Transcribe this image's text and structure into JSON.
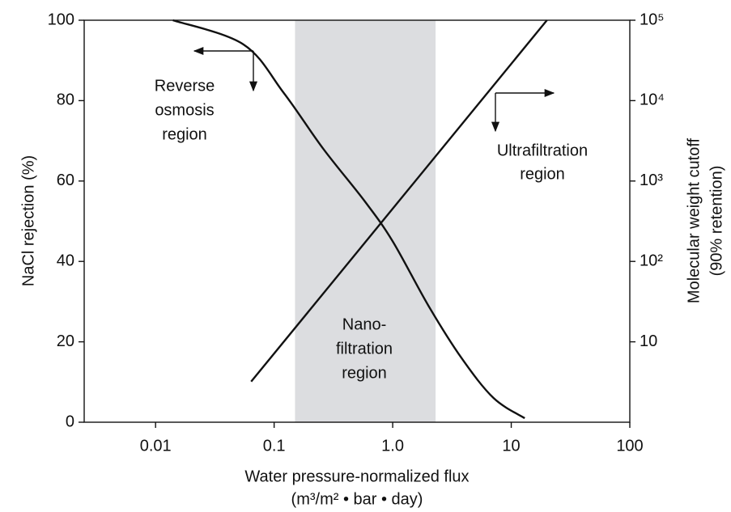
{
  "chart_data": {
    "type": "line",
    "x_label": [
      "Water pressure-normalized flux",
      "(m³/m² • bar • day)"
    ],
    "y_label": "NaCl rejection (%)",
    "y2_label": [
      "Molecular weight cutoff",
      "(90% retention)"
    ],
    "xscale": "log",
    "y2scale": "log",
    "xlim": [
      0.0025,
      100
    ],
    "xticks": [
      0.01,
      0.1,
      {
        "value": 1,
        "label": "1.0"
      },
      10,
      100
    ],
    "ylim": [
      0,
      100
    ],
    "yticks": [
      0,
      20,
      40,
      60,
      80,
      100
    ],
    "y2lim": [
      1,
      100000
    ],
    "y2ticks": [
      {
        "value": 100000,
        "label": "10⁵"
      },
      {
        "value": 10000,
        "label": "10⁴"
      },
      {
        "value": 1000,
        "label": "10³"
      },
      {
        "value": 100,
        "label": "10²"
      },
      10
    ],
    "shaded_region": {
      "x": [
        0.15,
        2.3
      ],
      "color": "#dcdde0",
      "label": [
        "Nano-",
        "filtration",
        "region"
      ]
    },
    "annotations": [
      {
        "text": [
          "Reverse",
          "osmosis",
          "region"
        ]
      },
      {
        "text": [
          "Ultrafiltration",
          "region"
        ]
      }
    ],
    "series": [
      {
        "color": "#111111",
        "axis": "y",
        "x": [
          0.014,
          0.055,
          0.12,
          0.26,
          0.58,
          1.0,
          2.0,
          3.8,
          7.1,
          13
        ],
        "values": [
          100,
          94,
          82,
          68,
          55,
          45,
          29,
          16,
          6,
          1
        ]
      },
      {
        "color": "#111111",
        "axis": "y2",
        "x": [
          0.064,
          20
        ],
        "values": [
          3.2,
          100000
        ]
      }
    ]
  }
}
